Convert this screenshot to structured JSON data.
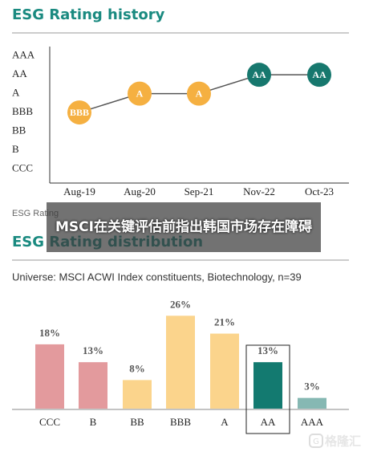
{
  "chart_data": [
    {
      "type": "line",
      "title": "ESG Rating history",
      "categories": [
        "Aug-19",
        "Aug-20",
        "Sep-21",
        "Nov-22",
        "Oct-23"
      ],
      "values": [
        3,
        4,
        4,
        5,
        5
      ],
      "value_labels": [
        "BBB",
        "A",
        "A",
        "AA",
        "AA"
      ],
      "color": "#555555",
      "colors": [
        "#f5b041",
        "#f5b041",
        "#f5b041",
        "#17786e",
        "#17786e"
      ],
      "ylim": [
        -0.75,
        6.5
      ],
      "yticks": [
        {
          "value": 6,
          "label": "AAA"
        },
        {
          "value": 5,
          "label": "AA"
        },
        {
          "value": 4,
          "label": "A"
        },
        {
          "value": 3,
          "label": "BBB"
        },
        {
          "value": 2,
          "label": "BB"
        },
        {
          "value": 1,
          "label": "B"
        },
        {
          "value": 0,
          "label": "CCC"
        }
      ],
      "footnote": "ESG Rating"
    },
    {
      "type": "bar",
      "title": "ESG Rating distribution",
      "subtitle": "Universe: MSCI ACWI Index constituents, Biotechnology, n=39",
      "categories": [
        "CCC",
        "B",
        "BB",
        "BBB",
        "A",
        "AA",
        "AAA"
      ],
      "values": [
        18,
        13,
        8,
        26,
        21,
        13,
        3
      ],
      "value_labels": [
        "18%",
        "13%",
        "8%",
        "26%",
        "21%",
        "13%",
        "3%"
      ],
      "colors": [
        "#e39a9d",
        "#e39a9d",
        "#fbd48c",
        "#fbd48c",
        "#fbd48c",
        "#137a70",
        "#86b8b3"
      ],
      "highlight": 5
    }
  ],
  "overlay_caption": "MSCI在关键评估前指出韩国市场存在障碍",
  "watermark": "格隆汇"
}
